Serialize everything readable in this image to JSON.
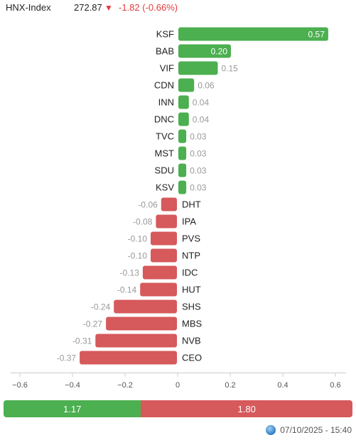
{
  "header": {
    "index_name": "HNX-Index",
    "value": "272.87",
    "arrow": "▼",
    "change": "-1.82 (-0.66%)",
    "change_color": "#e23b3b"
  },
  "chart_data": {
    "type": "bar",
    "orientation": "horizontal",
    "categories": [
      "KSF",
      "BAB",
      "VIF",
      "CDN",
      "INN",
      "DNC",
      "TVC",
      "MST",
      "SDU",
      "KSV",
      "DHT",
      "IPA",
      "PVS",
      "NTP",
      "IDC",
      "HUT",
      "SHS",
      "MBS",
      "NVB",
      "CEO"
    ],
    "values": [
      0.57,
      0.2,
      0.15,
      0.06,
      0.04,
      0.04,
      0.03,
      0.03,
      0.03,
      0.03,
      -0.06,
      -0.08,
      -0.1,
      -0.1,
      -0.13,
      -0.14,
      -0.24,
      -0.27,
      -0.31,
      -0.37
    ],
    "value_labels": [
      "0.57",
      "0.20",
      "0.15",
      "0.06",
      "0.04",
      "0.04",
      "0.03",
      "0.03",
      "0.03",
      "0.03",
      "-0.06",
      "-0.08",
      "-0.10",
      "-0.10",
      "-0.13",
      "-0.14",
      "-0.24",
      "-0.27",
      "-0.31",
      "-0.37"
    ],
    "xlim": [
      -0.6,
      0.6
    ],
    "xticks": [
      -0.6,
      -0.4,
      -0.2,
      0,
      0.2,
      0.4,
      0.6
    ],
    "xtick_labels": [
      "−0.6",
      "−0.4",
      "−0.2",
      "0",
      "0.2",
      "0.4",
      "0.6"
    ],
    "title": "",
    "xlabel": "",
    "ylabel": "",
    "grid": false,
    "positive_color": "#4caf50",
    "negative_color": "#d6595b"
  },
  "summary": {
    "up_value": 1.17,
    "down_value": 1.8,
    "up_label": "1.17",
    "down_label": "1.80",
    "up_color": "#4caf50",
    "down_color": "#d6595b"
  },
  "footer": {
    "icon": "globe-icon",
    "timestamp": "07/10/2025 - 15:40"
  }
}
